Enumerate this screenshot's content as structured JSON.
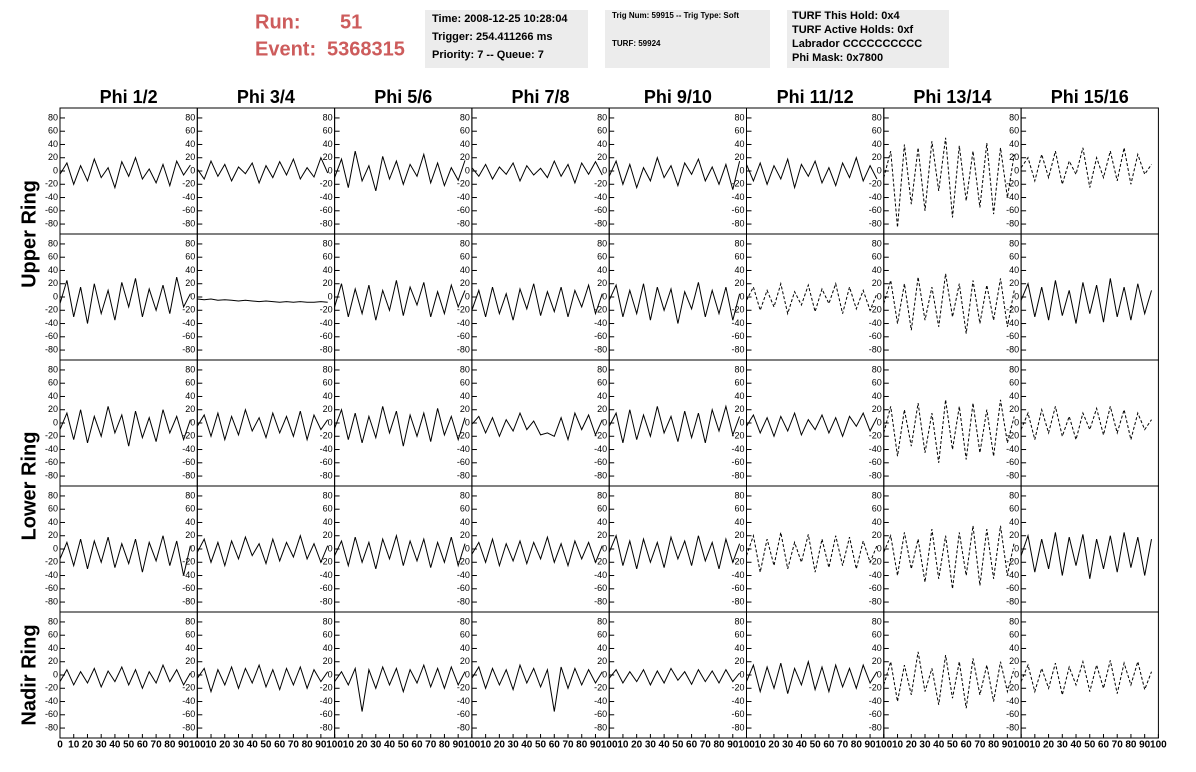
{
  "header": {
    "run_label": "Run:",
    "run": "51",
    "event_label": "Event:",
    "event": "5368315",
    "boxes": [
      [
        "Time: 2008-12-25 10:28:04",
        "Trigger: 254.411266 ms",
        "Priority: 7 -- Queue: 7"
      ],
      [
        "Trig Num: 59915 -- Trig Type: Soft",
        "TURF: 59924"
      ],
      [
        "TURF This Hold: 0x4",
        "TURF Active Holds: 0xf",
        "Labrador CCCCCCCCCC",
        "Phi Mask: 0x7800"
      ]
    ]
  },
  "columns": [
    "Phi 1/2",
    "Phi 3/4",
    "Phi 5/6",
    "Phi 7/8",
    "Phi 9/10",
    "Phi 11/12",
    "Phi 13/14",
    "Phi 15/16"
  ],
  "ring_labels": [
    "Upper Ring",
    "Lower Ring",
    "Nadir Ring"
  ],
  "xlim": [
    0,
    100
  ],
  "xticks": [
    0,
    10,
    20,
    30,
    40,
    50,
    60,
    70,
    80,
    90,
    100
  ],
  "ylim": [
    -95,
    95
  ],
  "yticks": [
    80,
    60,
    40,
    20,
    0,
    -20,
    -40,
    -60,
    -80
  ],
  "x": [
    0,
    5,
    10,
    15,
    20,
    25,
    30,
    35,
    40,
    45,
    50,
    55,
    60,
    65,
    70,
    75,
    80,
    85,
    90,
    95
  ],
  "panels": [
    [
      {
        "dashed": false,
        "values": [
          -5,
          12,
          -20,
          8,
          -15,
          18,
          -10,
          5,
          -25,
          14,
          -8,
          20,
          -12,
          3,
          -18,
          10,
          -22,
          15,
          -6,
          9
        ]
      },
      {
        "dashed": false,
        "values": [
          3,
          -12,
          15,
          -8,
          10,
          -15,
          6,
          -4,
          12,
          -18,
          8,
          -10,
          14,
          -6,
          18,
          -12,
          5,
          -9,
          20,
          -3
        ]
      },
      {
        "dashed": false,
        "values": [
          -10,
          18,
          -25,
          30,
          -15,
          8,
          -30,
          22,
          -12,
          15,
          -20,
          10,
          -8,
          25,
          -18,
          12,
          -22,
          5,
          -14,
          16
        ]
      },
      {
        "dashed": false,
        "values": [
          5,
          -8,
          10,
          -12,
          6,
          -5,
          12,
          -15,
          8,
          -6,
          4,
          -10,
          15,
          -8,
          10,
          -18,
          12,
          -5,
          14,
          -6
        ]
      },
      {
        "dashed": false,
        "values": [
          -8,
          15,
          -20,
          10,
          -25,
          5,
          -15,
          20,
          -10,
          8,
          -22,
          12,
          -5,
          18,
          -15,
          6,
          -20,
          10,
          -28,
          15
        ]
      },
      {
        "dashed": false,
        "values": [
          10,
          -15,
          12,
          -20,
          8,
          -12,
          18,
          -25,
          10,
          -8,
          15,
          -18,
          5,
          -22,
          12,
          -10,
          20,
          -15,
          8,
          -12
        ]
      },
      {
        "dashed": true,
        "values": [
          -10,
          30,
          -85,
          40,
          -50,
          35,
          -60,
          45,
          -30,
          50,
          -70,
          38,
          -45,
          30,
          -55,
          42,
          -65,
          35,
          -40,
          25
        ]
      },
      {
        "dashed": true,
        "values": [
          5,
          20,
          -15,
          25,
          -10,
          30,
          -20,
          15,
          -5,
          35,
          -25,
          20,
          -10,
          30,
          -15,
          35,
          -20,
          25,
          -5,
          10
        ]
      }
    ],
    [
      {
        "dashed": false,
        "values": [
          -10,
          25,
          -30,
          15,
          -40,
          20,
          -25,
          10,
          -35,
          22,
          -15,
          28,
          -30,
          12,
          -20,
          18,
          -25,
          30,
          -15,
          5
        ]
      },
      {
        "dashed": false,
        "values": [
          -3,
          -4,
          -3,
          -5,
          -4,
          -5,
          -6,
          -5,
          -6,
          -7,
          -6,
          -7,
          -8,
          -7,
          -8,
          -7,
          -8,
          -8,
          -7,
          -8
        ]
      },
      {
        "dashed": false,
        "values": [
          -15,
          20,
          -30,
          12,
          -25,
          18,
          -35,
          10,
          -20,
          25,
          -28,
          15,
          -12,
          22,
          -30,
          8,
          -25,
          18,
          -15,
          10
        ]
      },
      {
        "dashed": false,
        "values": [
          -20,
          10,
          -30,
          15,
          -25,
          5,
          -35,
          12,
          -18,
          20,
          -28,
          8,
          -22,
          15,
          -30,
          10,
          -15,
          18,
          -25,
          5
        ]
      },
      {
        "dashed": false,
        "values": [
          -5,
          18,
          -30,
          10,
          -25,
          20,
          -35,
          15,
          -20,
          12,
          -40,
          8,
          -18,
          22,
          -30,
          10,
          -25,
          15,
          -35,
          5
        ]
      },
      {
        "dashed": true,
        "values": [
          -5,
          15,
          -20,
          10,
          -15,
          20,
          -25,
          8,
          -12,
          18,
          -22,
          12,
          -10,
          20,
          -25,
          15,
          -18,
          10,
          -20,
          5
        ]
      },
      {
        "dashed": true,
        "values": [
          -10,
          25,
          -40,
          20,
          -50,
          30,
          -35,
          15,
          -45,
          35,
          -30,
          20,
          -55,
          25,
          -40,
          18,
          -35,
          28,
          -45,
          10
        ]
      },
      {
        "dashed": false,
        "values": [
          -5,
          20,
          -30,
          15,
          -35,
          25,
          -28,
          10,
          -40,
          22,
          -25,
          18,
          -38,
          28,
          -30,
          15,
          -35,
          20,
          -25,
          10
        ]
      }
    ],
    [
      {
        "dashed": false,
        "values": [
          -10,
          15,
          -25,
          20,
          -30,
          10,
          -20,
          25,
          -15,
          12,
          -35,
          18,
          -22,
          8,
          -28,
          20,
          -15,
          10,
          -25,
          5
        ]
      },
      {
        "dashed": false,
        "values": [
          -5,
          12,
          -20,
          15,
          -25,
          10,
          -18,
          20,
          -12,
          8,
          -22,
          15,
          -15,
          10,
          -20,
          18,
          -25,
          12,
          -10,
          5
        ]
      },
      {
        "dashed": false,
        "values": [
          -8,
          20,
          -25,
          15,
          -30,
          10,
          -22,
          25,
          -15,
          18,
          -35,
          12,
          -20,
          15,
          -28,
          22,
          -18,
          10,
          -25,
          8
        ]
      },
      {
        "dashed": false,
        "values": [
          -2,
          10,
          -15,
          8,
          -20,
          5,
          -12,
          15,
          -10,
          3,
          -18,
          -15,
          -20,
          8,
          -25,
          15,
          -10,
          12,
          -18,
          5
        ]
      },
      {
        "dashed": false,
        "values": [
          -5,
          15,
          -30,
          20,
          -25,
          12,
          -20,
          25,
          -15,
          10,
          -28,
          18,
          -22,
          15,
          -30,
          20,
          -12,
          25,
          -18,
          10
        ]
      },
      {
        "dashed": false,
        "values": [
          -5,
          12,
          -15,
          8,
          -20,
          10,
          -12,
          15,
          -18,
          5,
          -10,
          12,
          -15,
          8,
          -20,
          10,
          -5,
          15,
          -12,
          8
        ]
      },
      {
        "dashed": true,
        "values": [
          -15,
          25,
          -50,
          20,
          -35,
          30,
          -45,
          15,
          -60,
          35,
          -40,
          25,
          -55,
          30,
          -45,
          20,
          -50,
          35,
          -30,
          10
        ]
      },
      {
        "dashed": true,
        "values": [
          -10,
          15,
          -25,
          20,
          -15,
          25,
          -20,
          10,
          -25,
          15,
          -10,
          22,
          -18,
          25,
          -15,
          20,
          -25,
          15,
          -10,
          5
        ]
      }
    ],
    [
      {
        "dashed": false,
        "values": [
          -15,
          10,
          -25,
          15,
          -30,
          12,
          -20,
          18,
          -28,
          8,
          -22,
          15,
          -35,
          10,
          -18,
          20,
          -25,
          12,
          -40,
          5
        ]
      },
      {
        "dashed": false,
        "values": [
          -5,
          15,
          -20,
          10,
          -25,
          12,
          -15,
          18,
          -10,
          8,
          -22,
          15,
          -18,
          10,
          -12,
          20,
          -15,
          8,
          -20,
          5
        ]
      },
      {
        "dashed": false,
        "values": [
          -10,
          12,
          -25,
          18,
          -20,
          10,
          -30,
          15,
          -15,
          20,
          -25,
          12,
          -18,
          15,
          -28,
          10,
          -20,
          18,
          -25,
          8
        ]
      },
      {
        "dashed": false,
        "values": [
          -8,
          10,
          -20,
          15,
          -25,
          8,
          -18,
          12,
          -22,
          10,
          -15,
          18,
          -20,
          8,
          -25,
          12,
          -15,
          10,
          -20,
          5
        ]
      },
      {
        "dashed": false,
        "values": [
          -5,
          20,
          -25,
          12,
          -30,
          15,
          -20,
          10,
          -28,
          18,
          -15,
          12,
          -25,
          20,
          -18,
          10,
          -30,
          15,
          -20,
          8
        ]
      },
      {
        "dashed": true,
        "values": [
          -10,
          20,
          -35,
          15,
          -25,
          25,
          -30,
          10,
          -20,
          22,
          -35,
          15,
          -28,
          20,
          -25,
          18,
          -30,
          12,
          -20,
          5
        ]
      },
      {
        "dashed": true,
        "values": [
          -5,
          20,
          -40,
          25,
          -30,
          15,
          -50,
          30,
          -45,
          20,
          -60,
          25,
          -40,
          35,
          -55,
          30,
          -45,
          35,
          -40,
          10
        ]
      },
      {
        "dashed": false,
        "values": [
          -10,
          20,
          -35,
          15,
          -30,
          25,
          -40,
          18,
          -25,
          22,
          -45,
          15,
          -30,
          20,
          -35,
          25,
          -28,
          18,
          -40,
          15
        ]
      }
    ],
    [
      {
        "dashed": false,
        "values": [
          -10,
          8,
          -15,
          5,
          -12,
          10,
          -18,
          6,
          -10,
          12,
          -15,
          8,
          -20,
          5,
          -12,
          15,
          -10,
          8,
          -15,
          3
        ]
      },
      {
        "dashed": false,
        "values": [
          -5,
          10,
          -25,
          8,
          -15,
          12,
          -20,
          10,
          -12,
          15,
          -18,
          8,
          -22,
          10,
          -15,
          12,
          -20,
          8,
          -10,
          5
        ]
      },
      {
        "dashed": false,
        "values": [
          -10,
          5,
          -15,
          10,
          -55,
          8,
          -20,
          12,
          -15,
          10,
          -25,
          8,
          -12,
          15,
          -18,
          10,
          -20,
          12,
          -15,
          5
        ]
      },
      {
        "dashed": false,
        "values": [
          -5,
          12,
          -20,
          10,
          -15,
          8,
          -22,
          15,
          -12,
          10,
          -18,
          8,
          -55,
          12,
          -20,
          10,
          -15,
          8,
          -12,
          5
        ]
      },
      {
        "dashed": false,
        "values": [
          -5,
          8,
          -12,
          5,
          -10,
          8,
          -15,
          6,
          -12,
          10,
          -8,
          5,
          -14,
          8,
          -10,
          6,
          -12,
          8,
          -10,
          3
        ]
      },
      {
        "dashed": false,
        "values": [
          -10,
          15,
          -25,
          12,
          -20,
          18,
          -28,
          10,
          -15,
          20,
          -22,
          12,
          -25,
          15,
          -18,
          10,
          -20,
          15,
          -12,
          5
        ]
      },
      {
        "dashed": true,
        "values": [
          -15,
          20,
          -40,
          15,
          -30,
          35,
          -25,
          10,
          -45,
          30,
          -35,
          20,
          -50,
          25,
          -30,
          15,
          -40,
          20,
          -25,
          10
        ]
      },
      {
        "dashed": true,
        "values": [
          -10,
          15,
          -25,
          10,
          -20,
          18,
          -30,
          12,
          -15,
          20,
          -25,
          15,
          -20,
          22,
          -28,
          18,
          -15,
          20,
          -22,
          5
        ]
      }
    ]
  ]
}
